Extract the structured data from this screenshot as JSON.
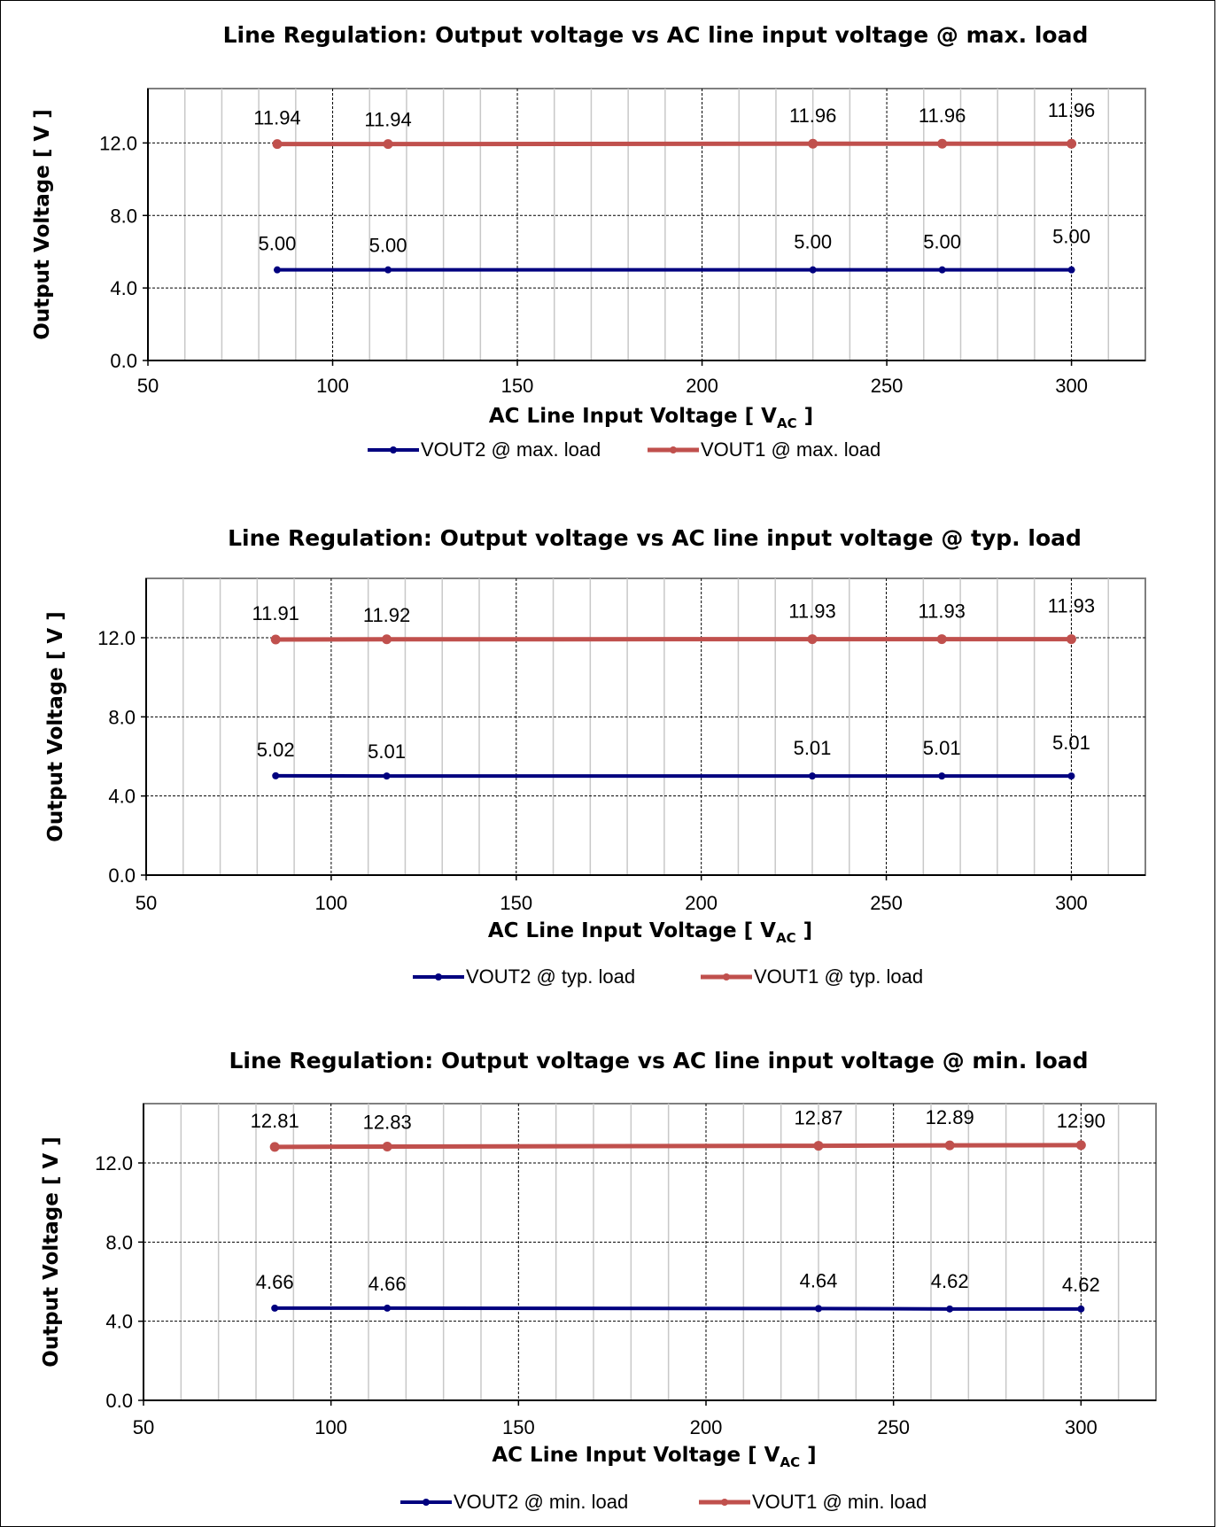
{
  "chart_data": [
    {
      "type": "line",
      "title": "Line Regulation: Output voltage vs AC line input voltage @ max. load",
      "xlabel": "AC Line Input Voltage [ V",
      "xlabel_sub": "AC",
      "xlabel_end": " ]",
      "ylabel": "Output Voltage [ V ]",
      "xlim": [
        50,
        320
      ],
      "ylim": [
        0,
        15
      ],
      "xticks": [
        50,
        100,
        150,
        200,
        250,
        300
      ],
      "yticks": [
        0.0,
        4.0,
        8.0,
        12.0
      ],
      "ytick_labels": [
        "0.0",
        "4.0",
        "8.0",
        "12.0"
      ],
      "grid": true,
      "legend_position": "bottom",
      "x": [
        85,
        115,
        230,
        265,
        300
      ],
      "series": [
        {
          "name": "VOUT2 @ max. load",
          "color": "#00007f",
          "values": [
            5.0,
            5.0,
            5.0,
            5.0,
            5.0
          ],
          "labels": [
            "5.00",
            "5.00",
            "5.00",
            "5.00",
            "5.00"
          ]
        },
        {
          "name": "VOUT1 @ max. load",
          "color": "#c0504d",
          "values": [
            11.94,
            11.94,
            11.96,
            11.96,
            11.96
          ],
          "labels": [
            "11.94",
            "11.94",
            "11.96",
            "11.96",
            "11.96"
          ]
        }
      ]
    },
    {
      "type": "line",
      "title": "Line Regulation: Output voltage vs AC line input voltage @ typ. load",
      "xlabel": "AC Line Input Voltage [ V",
      "xlabel_sub": "AC",
      "xlabel_end": " ]",
      "ylabel": "Output Voltage [ V ]",
      "xlim": [
        50,
        320
      ],
      "ylim": [
        0,
        15
      ],
      "xticks": [
        50,
        100,
        150,
        200,
        250,
        300
      ],
      "yticks": [
        0.0,
        4.0,
        8.0,
        12.0
      ],
      "ytick_labels": [
        "0.0",
        "4.0",
        "8.0",
        "12.0"
      ],
      "grid": true,
      "legend_position": "bottom",
      "x": [
        85,
        115,
        230,
        265,
        300
      ],
      "series": [
        {
          "name": "VOUT2 @ typ. load",
          "color": "#00007f",
          "values": [
            5.02,
            5.01,
            5.01,
            5.01,
            5.01
          ],
          "labels": [
            "5.02",
            "5.01",
            "5.01",
            "5.01",
            "5.01"
          ]
        },
        {
          "name": "VOUT1 @ typ. load",
          "color": "#c0504d",
          "values": [
            11.91,
            11.92,
            11.93,
            11.93,
            11.93
          ],
          "labels": [
            "11.91",
            "11.92",
            "11.93",
            "11.93",
            "11.93"
          ]
        }
      ]
    },
    {
      "type": "line",
      "title": "Line Regulation: Output voltage vs AC line input voltage @ min. load",
      "xlabel": "AC Line Input Voltage [ V",
      "xlabel_sub": "AC",
      "xlabel_end": " ]",
      "ylabel": "Output Voltage [ V ]",
      "xlim": [
        50,
        320
      ],
      "ylim": [
        0,
        15
      ],
      "xticks": [
        50,
        100,
        150,
        200,
        250,
        300
      ],
      "yticks": [
        0.0,
        4.0,
        8.0,
        12.0
      ],
      "ytick_labels": [
        "0.0",
        "4.0",
        "8.0",
        "12.0"
      ],
      "grid": true,
      "legend_position": "bottom",
      "x": [
        85,
        115,
        230,
        265,
        300
      ],
      "series": [
        {
          "name": "VOUT2  @ min. load",
          "color": "#00007f",
          "values": [
            4.66,
            4.66,
            4.64,
            4.62,
            4.62
          ],
          "labels": [
            "4.66",
            "4.66",
            "4.64",
            "4.62",
            "4.62"
          ]
        },
        {
          "name": "VOUT1 @ min. load",
          "color": "#c0504d",
          "values": [
            12.81,
            12.83,
            12.87,
            12.89,
            12.9
          ],
          "labels": [
            "12.81",
            "12.83",
            "12.87",
            "12.89",
            "12.90"
          ]
        }
      ]
    }
  ]
}
